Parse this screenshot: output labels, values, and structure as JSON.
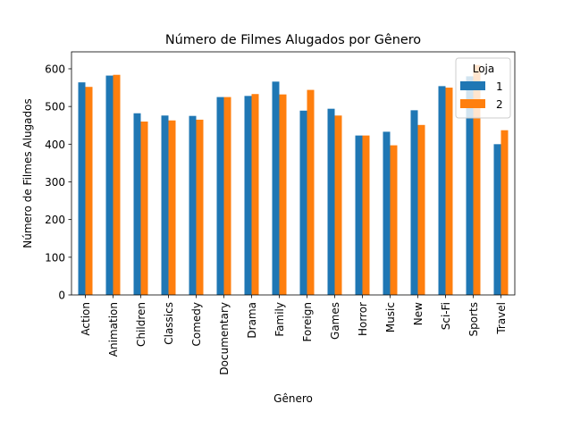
{
  "chart_data": {
    "type": "bar",
    "title": "Número de Filmes Alugados por Gênero",
    "xlabel": "Gênero",
    "ylabel": "Número de Filmes Alugados",
    "ylim": [
      0,
      645
    ],
    "yticks": [
      0,
      100,
      200,
      300,
      400,
      500,
      600
    ],
    "grid": false,
    "legend": {
      "title": "Loja",
      "position": "top-right"
    },
    "categories": [
      "Action",
      "Animation",
      "Children",
      "Classics",
      "Comedy",
      "Documentary",
      "Drama",
      "Family",
      "Foreign",
      "Games",
      "Horror",
      "Music",
      "New",
      "Sci-Fi",
      "Sports",
      "Travel"
    ],
    "series": [
      {
        "name": "1",
        "color": "#1f77b4",
        "values": [
          564,
          582,
          482,
          476,
          475,
          525,
          528,
          566,
          489,
          494,
          423,
          433,
          490,
          554,
          580,
          400
        ]
      },
      {
        "name": "2",
        "color": "#ff7f0e",
        "values": [
          552,
          584,
          460,
          463,
          465,
          525,
          533,
          532,
          544,
          476,
          423,
          397,
          451,
          550,
          610,
          437
        ]
      }
    ]
  }
}
